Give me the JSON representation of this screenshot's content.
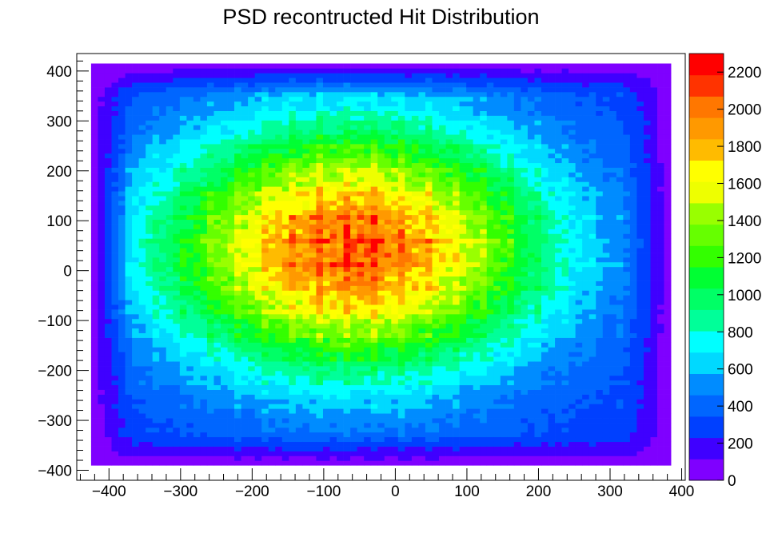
{
  "chart_data": {
    "type": "heatmap",
    "title": "PSD recontructed Hit Distribution",
    "xlabel": "",
    "ylabel": "",
    "xlim": [
      -445,
      405
    ],
    "ylim": [
      -420,
      435
    ],
    "x_ticks": [
      -400,
      -300,
      -200,
      -100,
      0,
      100,
      200,
      300,
      400
    ],
    "y_ticks": [
      -400,
      -300,
      -200,
      -100,
      0,
      100,
      200,
      300,
      400
    ],
    "x_tick_labels": [
      "−400",
      "−300",
      "−200",
      "−100",
      "0",
      "100",
      "200",
      "300",
      "400"
    ],
    "y_tick_labels": [
      "−400",
      "−300",
      "−200",
      "−100",
      "0",
      "100",
      "200",
      "300",
      "400"
    ],
    "data_x_range": [
      -425,
      385
    ],
    "data_y_range": [
      -390,
      415
    ],
    "bins_x": 85,
    "bins_y": 85,
    "peak_center": [
      -60,
      45
    ],
    "z_min": 0,
    "z_max": 2300,
    "z_ticks": [
      0,
      200,
      400,
      600,
      800,
      1000,
      1200,
      1400,
      1600,
      1800,
      2000,
      2200
    ],
    "z_tick_labels": [
      "0",
      "200",
      "400",
      "600",
      "800",
      "1000",
      "1200",
      "1400",
      "1600",
      "1800",
      "2000",
      "2200"
    ],
    "colorbar_levels": 20,
    "palette": [
      "#7f00ff",
      "#3f00ff",
      "#0018ff",
      "#0040ff",
      "#0066ff",
      "#008cff",
      "#00b3ff",
      "#00d9ff",
      "#00ffff",
      "#00ffcc",
      "#00ff99",
      "#00ff66",
      "#00ff33",
      "#00ff00",
      "#33ff00",
      "#66ff00",
      "#99ff00",
      "#ccff00",
      "#eeff00",
      "#ffff00",
      "#ffdd00",
      "#ffbb00",
      "#ff9900",
      "#ff7700",
      "#ff5500",
      "#ff3300",
      "#ff0000"
    ],
    "grid": false,
    "legend": "colorbar-right"
  }
}
